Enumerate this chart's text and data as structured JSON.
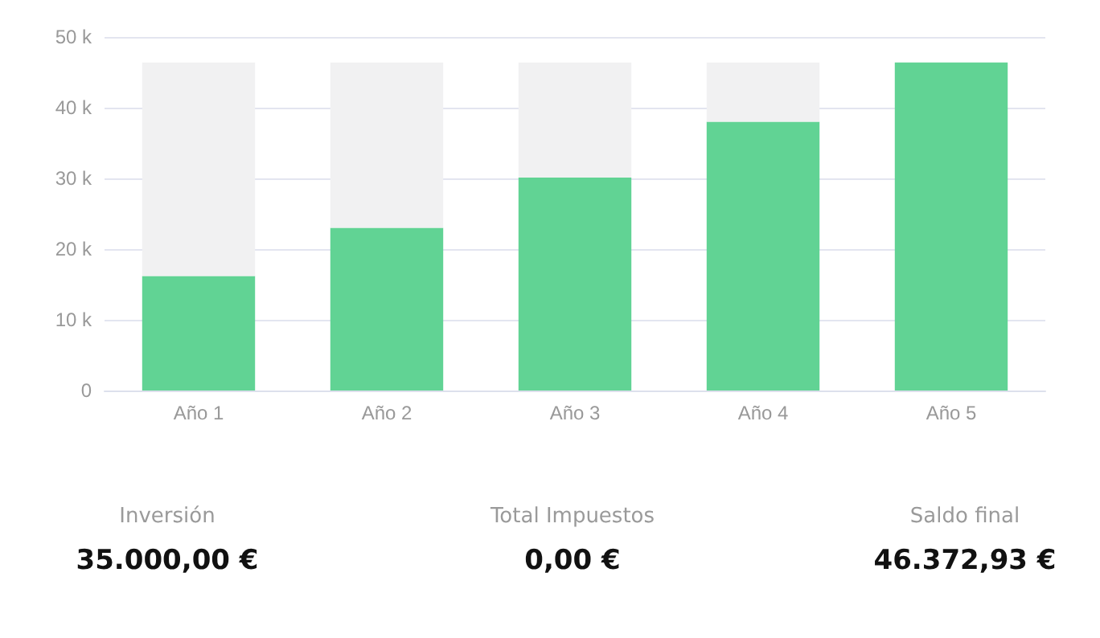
{
  "chart_data": {
    "type": "bar",
    "categories": [
      "Año 1",
      "Año 2",
      "Año 3",
      "Año 4",
      "Año 5"
    ],
    "stacked": true,
    "series": [
      {
        "color": "#61d394",
        "values": [
          16.2,
          23.0,
          30.1,
          38.0,
          46.4
        ]
      },
      {
        "color": "#f1f1f2",
        "values": [
          30.2,
          23.4,
          16.3,
          8.4,
          0
        ]
      }
    ],
    "ylim": [
      0,
      50
    ],
    "yticks": [
      {
        "value": 0,
        "label": "0"
      },
      {
        "value": 10,
        "label": "10 k"
      },
      {
        "value": 20,
        "label": "20 k"
      },
      {
        "value": 30,
        "label": "30 k"
      },
      {
        "value": 40,
        "label": "40 k"
      },
      {
        "value": 50,
        "label": "50 k"
      }
    ],
    "grid": "y",
    "annotations": [
      "Inversión",
      "35.000,00 €",
      "Total Impuestos",
      "0,00 €",
      "Saldo final",
      "46.372,93 €"
    ]
  }
}
